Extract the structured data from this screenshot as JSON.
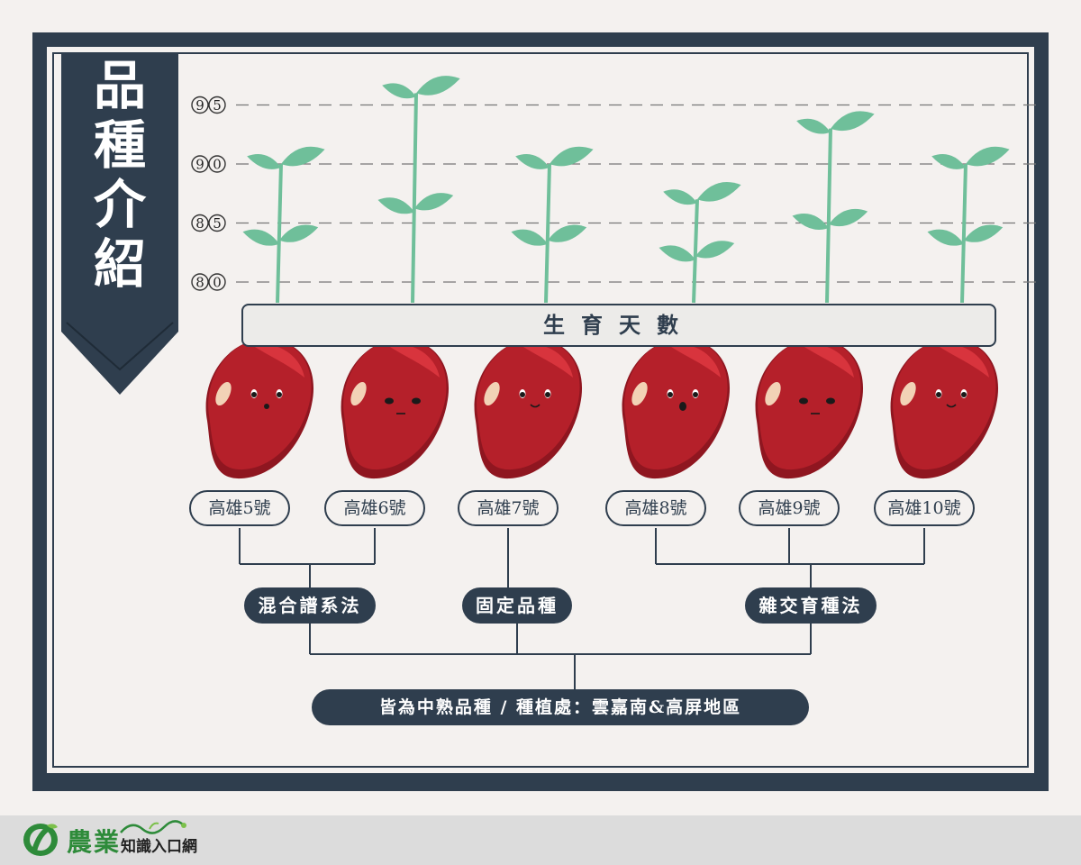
{
  "title": "品種介紹",
  "title_chars": [
    "品",
    "種",
    "介",
    "紹"
  ],
  "footer": {
    "brand": "農業",
    "subtitle": "知識入口網"
  },
  "chart_data": {
    "type": "bar",
    "ylabel": "生育天數",
    "y_ticks": [
      80,
      85,
      90,
      95
    ],
    "y_tick_labels": [
      "80",
      "85",
      "90",
      "95"
    ],
    "ylim": [
      80,
      95
    ],
    "grid": true,
    "categories": [
      "高雄5號",
      "高雄6號",
      "高雄7號",
      "高雄8號",
      "高雄9號",
      "高雄10號"
    ],
    "values": [
      90,
      96,
      90,
      87,
      93,
      90
    ]
  },
  "methods": [
    {
      "label": "混合譜系法",
      "varieties": [
        "高雄5號",
        "高雄6號"
      ]
    },
    {
      "label": "固定品種",
      "varieties": [
        "高雄7號"
      ]
    },
    {
      "label": "雜交育種法",
      "varieties": [
        "高雄8號",
        "高雄9號",
        "高雄10號"
      ]
    }
  ],
  "summary": "皆為中熟品種 / 種植處：雲嘉南&高屏地區",
  "colors": {
    "navy": "#2f3e4e",
    "sprout": "#6fbf9a",
    "bean": "#b5202a",
    "background": "#f4f1ef",
    "brand_green": "#2e8b3a"
  }
}
